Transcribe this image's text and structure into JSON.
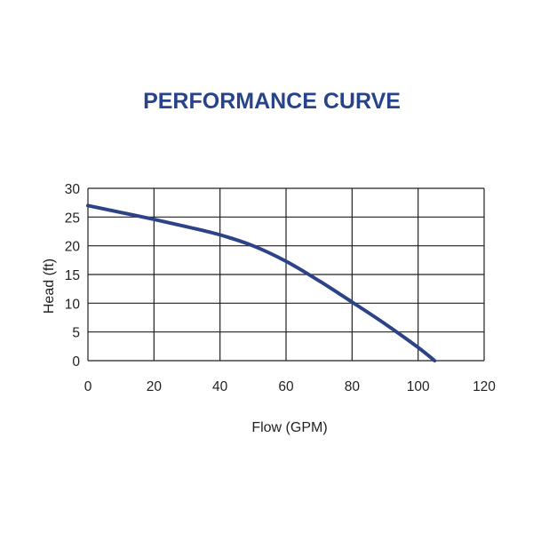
{
  "chart_data": {
    "type": "line",
    "title": "PERFORMANCE CURVE",
    "xlabel": "Flow (GPM)",
    "ylabel": "Head (ft)",
    "xlim": [
      0,
      120
    ],
    "ylim": [
      0,
      30
    ],
    "x_ticks": [
      0,
      20,
      40,
      60,
      80,
      100,
      120
    ],
    "y_ticks": [
      0,
      5,
      10,
      15,
      20,
      25,
      30
    ],
    "grid": true,
    "legend": "none",
    "series": [
      {
        "name": "Head",
        "x": [
          0,
          10,
          20,
          30,
          40,
          50,
          60,
          70,
          80,
          90,
          100,
          105
        ],
        "y": [
          27,
          25.8,
          24.6,
          23.3,
          21.9,
          20,
          17.3,
          13.9,
          10.2,
          6.4,
          2.3,
          0
        ]
      }
    ]
  },
  "colors": {
    "title": "#27438b",
    "curve": "#2c4388",
    "grid": "#231f20",
    "text": "#231f20"
  }
}
